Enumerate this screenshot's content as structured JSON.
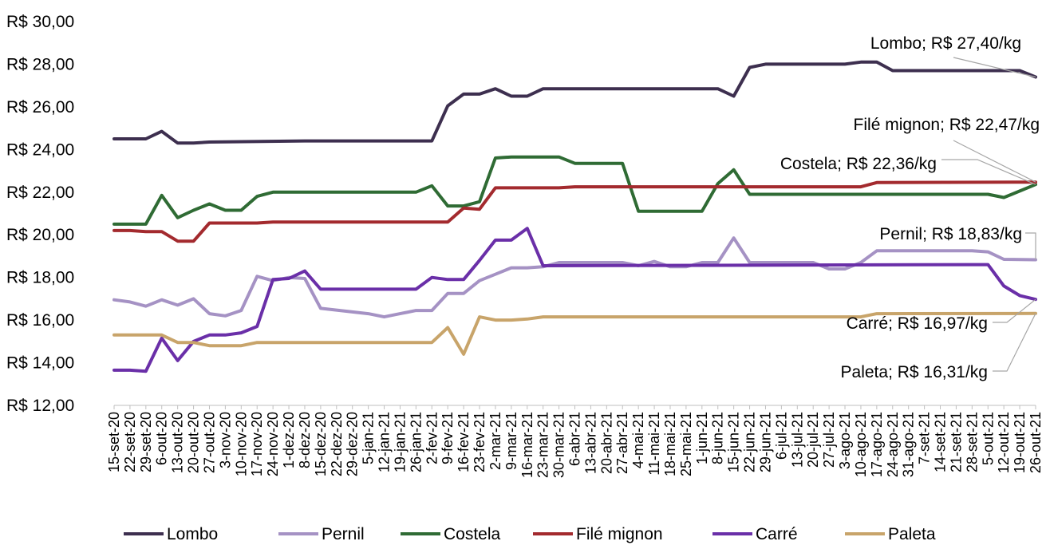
{
  "chart_data": {
    "type": "line",
    "title": "",
    "xlabel": "",
    "ylabel": "",
    "ylim": [
      12,
      30
    ],
    "y_tick_step": 2,
    "y_tick_labels": [
      "R$ 12,00",
      "R$ 14,00",
      "R$ 16,00",
      "R$ 18,00",
      "R$ 20,00",
      "R$ 22,00",
      "R$ 24,00",
      "R$ 26,00",
      "R$ 28,00",
      "R$ 30,00"
    ],
    "grid": false,
    "legend_position": "bottom",
    "categories": [
      "15-set-20",
      "22-set-20",
      "29-set-20",
      "6-out-20",
      "13-out-20",
      "20-out-20",
      "27-out-20",
      "3-nov-20",
      "10-nov-20",
      "17-nov-20",
      "24-nov-20",
      "1-dez-20",
      "8-dez-20",
      "15-dez-20",
      "22-dez-20",
      "29-dez-20",
      "5-jan-21",
      "12-jan-21",
      "19-jan-21",
      "26-jan-21",
      "2-fev-21",
      "9-fev-21",
      "16-fev-21",
      "23-fev-21",
      "2-mar-21",
      "9-mar-21",
      "16-mar-21",
      "23-mar-21",
      "30-mar-21",
      "6-abr-21",
      "13-abr-21",
      "20-abr-21",
      "27-abr-21",
      "4-mai-21",
      "11-mai-21",
      "18-mai-21",
      "25-mai-21",
      "1-jun-21",
      "8-jun-21",
      "15-jun-21",
      "22-jun-21",
      "29-jun-21",
      "6-jul-21",
      "13-jul-21",
      "20-jul-21",
      "27-jul-21",
      "3-ago-21",
      "10-ago-21",
      "17-ago-21",
      "24-ago-21",
      "31-ago-21",
      "7-set-21",
      "14-set-21",
      "21-set-21",
      "28-set-21",
      "5-out-21",
      "12-out-21",
      "19-out-21",
      "26-out-21"
    ],
    "series": [
      {
        "name": "Lombo",
        "color": "#3d2f4f",
        "points": [
          [
            0,
            24.5
          ],
          [
            2,
            24.5
          ],
          [
            3,
            24.85
          ],
          [
            4,
            24.3
          ],
          [
            5,
            24.3
          ],
          [
            6,
            24.35
          ],
          [
            12,
            24.4
          ],
          [
            20,
            24.4
          ],
          [
            21,
            26.05
          ],
          [
            22,
            26.6
          ],
          [
            23,
            26.6
          ],
          [
            24,
            26.85
          ],
          [
            25,
            26.5
          ],
          [
            26,
            26.5
          ],
          [
            27,
            26.85
          ],
          [
            38,
            26.85
          ],
          [
            39,
            26.5
          ],
          [
            40,
            27.85
          ],
          [
            41,
            28.0
          ],
          [
            46,
            28.0
          ],
          [
            47,
            28.1
          ],
          [
            48,
            28.1
          ],
          [
            49,
            27.7
          ],
          [
            57,
            27.7
          ],
          [
            58,
            27.4
          ]
        ]
      },
      {
        "name": "Pernil",
        "color": "#a592c4",
        "points": [
          [
            0,
            16.95
          ],
          [
            1,
            16.85
          ],
          [
            2,
            16.65
          ],
          [
            3,
            16.95
          ],
          [
            4,
            16.7
          ],
          [
            5,
            17.0
          ],
          [
            6,
            16.3
          ],
          [
            7,
            16.2
          ],
          [
            8,
            16.45
          ],
          [
            9,
            18.05
          ],
          [
            10,
            17.85
          ],
          [
            11,
            18.0
          ],
          [
            12,
            17.95
          ],
          [
            13,
            16.55
          ],
          [
            16,
            16.3
          ],
          [
            17,
            16.15
          ],
          [
            18,
            16.3
          ],
          [
            19,
            16.45
          ],
          [
            20,
            16.45
          ],
          [
            21,
            17.25
          ],
          [
            22,
            17.25
          ],
          [
            23,
            17.85
          ],
          [
            24,
            18.15
          ],
          [
            25,
            18.45
          ],
          [
            26,
            18.45
          ],
          [
            27,
            18.5
          ],
          [
            28,
            18.7
          ],
          [
            32,
            18.7
          ],
          [
            33,
            18.55
          ],
          [
            34,
            18.75
          ],
          [
            35,
            18.5
          ],
          [
            36,
            18.5
          ],
          [
            37,
            18.7
          ],
          [
            38,
            18.7
          ],
          [
            39,
            19.85
          ],
          [
            40,
            18.7
          ],
          [
            44,
            18.7
          ],
          [
            45,
            18.4
          ],
          [
            46,
            18.4
          ],
          [
            47,
            18.7
          ],
          [
            48,
            19.25
          ],
          [
            54,
            19.25
          ],
          [
            55,
            19.2
          ],
          [
            56,
            18.85
          ],
          [
            58,
            18.83
          ]
        ]
      },
      {
        "name": "Costela",
        "color": "#2f6b34",
        "points": [
          [
            0,
            20.5
          ],
          [
            2,
            20.5
          ],
          [
            3,
            21.85
          ],
          [
            4,
            20.8
          ],
          [
            5,
            21.15
          ],
          [
            6,
            21.45
          ],
          [
            7,
            21.15
          ],
          [
            8,
            21.15
          ],
          [
            9,
            21.8
          ],
          [
            10,
            22.0
          ],
          [
            19,
            22.0
          ],
          [
            20,
            22.3
          ],
          [
            21,
            21.35
          ],
          [
            22,
            21.35
          ],
          [
            23,
            21.55
          ],
          [
            24,
            23.6
          ],
          [
            25,
            23.65
          ],
          [
            28,
            23.65
          ],
          [
            29,
            23.35
          ],
          [
            32,
            23.35
          ],
          [
            33,
            21.1
          ],
          [
            37,
            21.1
          ],
          [
            38,
            22.4
          ],
          [
            39,
            23.05
          ],
          [
            40,
            21.9
          ],
          [
            55,
            21.9
          ],
          [
            56,
            21.75
          ],
          [
            57,
            22.05
          ],
          [
            58,
            22.36
          ]
        ]
      },
      {
        "name": "Filé mignon",
        "color": "#a32a2e",
        "points": [
          [
            0,
            20.2
          ],
          [
            1,
            20.2
          ],
          [
            2,
            20.15
          ],
          [
            3,
            20.15
          ],
          [
            4,
            19.7
          ],
          [
            5,
            19.7
          ],
          [
            6,
            20.55
          ],
          [
            9,
            20.55
          ],
          [
            10,
            20.6
          ],
          [
            21,
            20.6
          ],
          [
            22,
            21.25
          ],
          [
            23,
            21.2
          ],
          [
            24,
            22.2
          ],
          [
            28,
            22.2
          ],
          [
            29,
            22.25
          ],
          [
            47,
            22.25
          ],
          [
            48,
            22.45
          ],
          [
            58,
            22.47
          ]
        ]
      },
      {
        "name": "Carré",
        "color": "#6a2fa8",
        "points": [
          [
            0,
            13.65
          ],
          [
            1,
            13.65
          ],
          [
            2,
            13.6
          ],
          [
            3,
            15.15
          ],
          [
            4,
            14.1
          ],
          [
            5,
            15.0
          ],
          [
            6,
            15.3
          ],
          [
            7,
            15.3
          ],
          [
            8,
            15.4
          ],
          [
            9,
            15.7
          ],
          [
            10,
            17.9
          ],
          [
            11,
            17.95
          ],
          [
            12,
            18.3
          ],
          [
            13,
            17.45
          ],
          [
            19,
            17.45
          ],
          [
            20,
            18.0
          ],
          [
            21,
            17.9
          ],
          [
            22,
            17.9
          ],
          [
            23,
            18.8
          ],
          [
            24,
            19.75
          ],
          [
            25,
            19.75
          ],
          [
            26,
            20.3
          ],
          [
            27,
            18.55
          ],
          [
            54,
            18.6
          ],
          [
            55,
            18.6
          ],
          [
            56,
            17.6
          ],
          [
            57,
            17.15
          ],
          [
            58,
            16.97
          ]
        ]
      },
      {
        "name": "Paleta",
        "color": "#c8a46a",
        "points": [
          [
            0,
            15.3
          ],
          [
            3,
            15.3
          ],
          [
            4,
            14.95
          ],
          [
            5,
            14.95
          ],
          [
            6,
            14.8
          ],
          [
            8,
            14.8
          ],
          [
            9,
            14.95
          ],
          [
            10,
            14.95
          ],
          [
            20,
            14.95
          ],
          [
            21,
            15.65
          ],
          [
            22,
            14.4
          ],
          [
            23,
            16.15
          ],
          [
            24,
            16.0
          ],
          [
            25,
            16.0
          ],
          [
            26,
            16.05
          ],
          [
            27,
            16.15
          ],
          [
            47,
            16.15
          ],
          [
            48,
            16.3
          ],
          [
            58,
            16.31
          ]
        ]
      }
    ],
    "annotations": [
      {
        "series": "Lombo",
        "text": "Lombo; R$ 27,40/kg"
      },
      {
        "series": "Filé mignon",
        "text": "Filé mignon; R$ 22,47/kg"
      },
      {
        "series": "Costela",
        "text": "Costela; R$ 22,36/kg"
      },
      {
        "series": "Pernil",
        "text": "Pernil; R$ 18,83/kg"
      },
      {
        "series": "Carré",
        "text": "Carré; R$ 16,97/kg"
      },
      {
        "series": "Paleta",
        "text": "Paleta; R$ 16,31/kg"
      }
    ]
  }
}
